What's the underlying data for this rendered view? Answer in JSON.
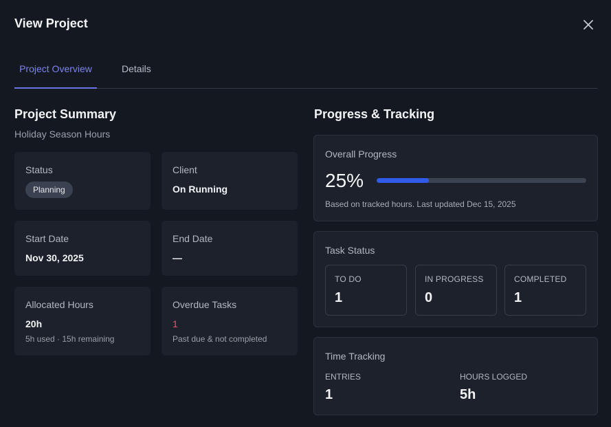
{
  "header": {
    "title": "View Project",
    "close_icon": "close-icon"
  },
  "tabs": [
    {
      "label": "Project Overview",
      "active": true
    },
    {
      "label": "Details",
      "active": false
    }
  ],
  "summary": {
    "title": "Project Summary",
    "subtitle": "Holiday Season Hours",
    "status": {
      "label": "Status",
      "value": "Planning"
    },
    "client": {
      "label": "Client",
      "value": "On Running"
    },
    "start_date": {
      "label": "Start Date",
      "value": "Nov 30, 2025"
    },
    "end_date": {
      "label": "End Date",
      "value": "—"
    },
    "allocated": {
      "label": "Allocated Hours",
      "value": "20h",
      "note": "5h used · 15h remaining"
    },
    "overdue": {
      "label": "Overdue Tasks",
      "value": "1",
      "note": "Past due & not completed"
    }
  },
  "progress": {
    "title": "Progress & Tracking",
    "overall": {
      "label": "Overall Progress",
      "percent_text": "25%",
      "percent": 25,
      "note": "Based on tracked hours. Last updated Dec 15, 2025"
    },
    "task_status": {
      "label": "Task Status",
      "items": [
        {
          "label": "TO DO",
          "value": "1"
        },
        {
          "label": "IN PROGRESS",
          "value": "0"
        },
        {
          "label": "COMPLETED",
          "value": "1"
        }
      ]
    },
    "time_tracking": {
      "label": "Time Tracking",
      "entries": {
        "label": "ENTRIES",
        "value": "1"
      },
      "hours": {
        "label": "HOURS LOGGED",
        "value": "5h"
      }
    }
  },
  "colors": {
    "accent": "#7c83f2",
    "progress_fill": "#2f5be8",
    "overdue": "#f2526b",
    "background": "#141821"
  }
}
